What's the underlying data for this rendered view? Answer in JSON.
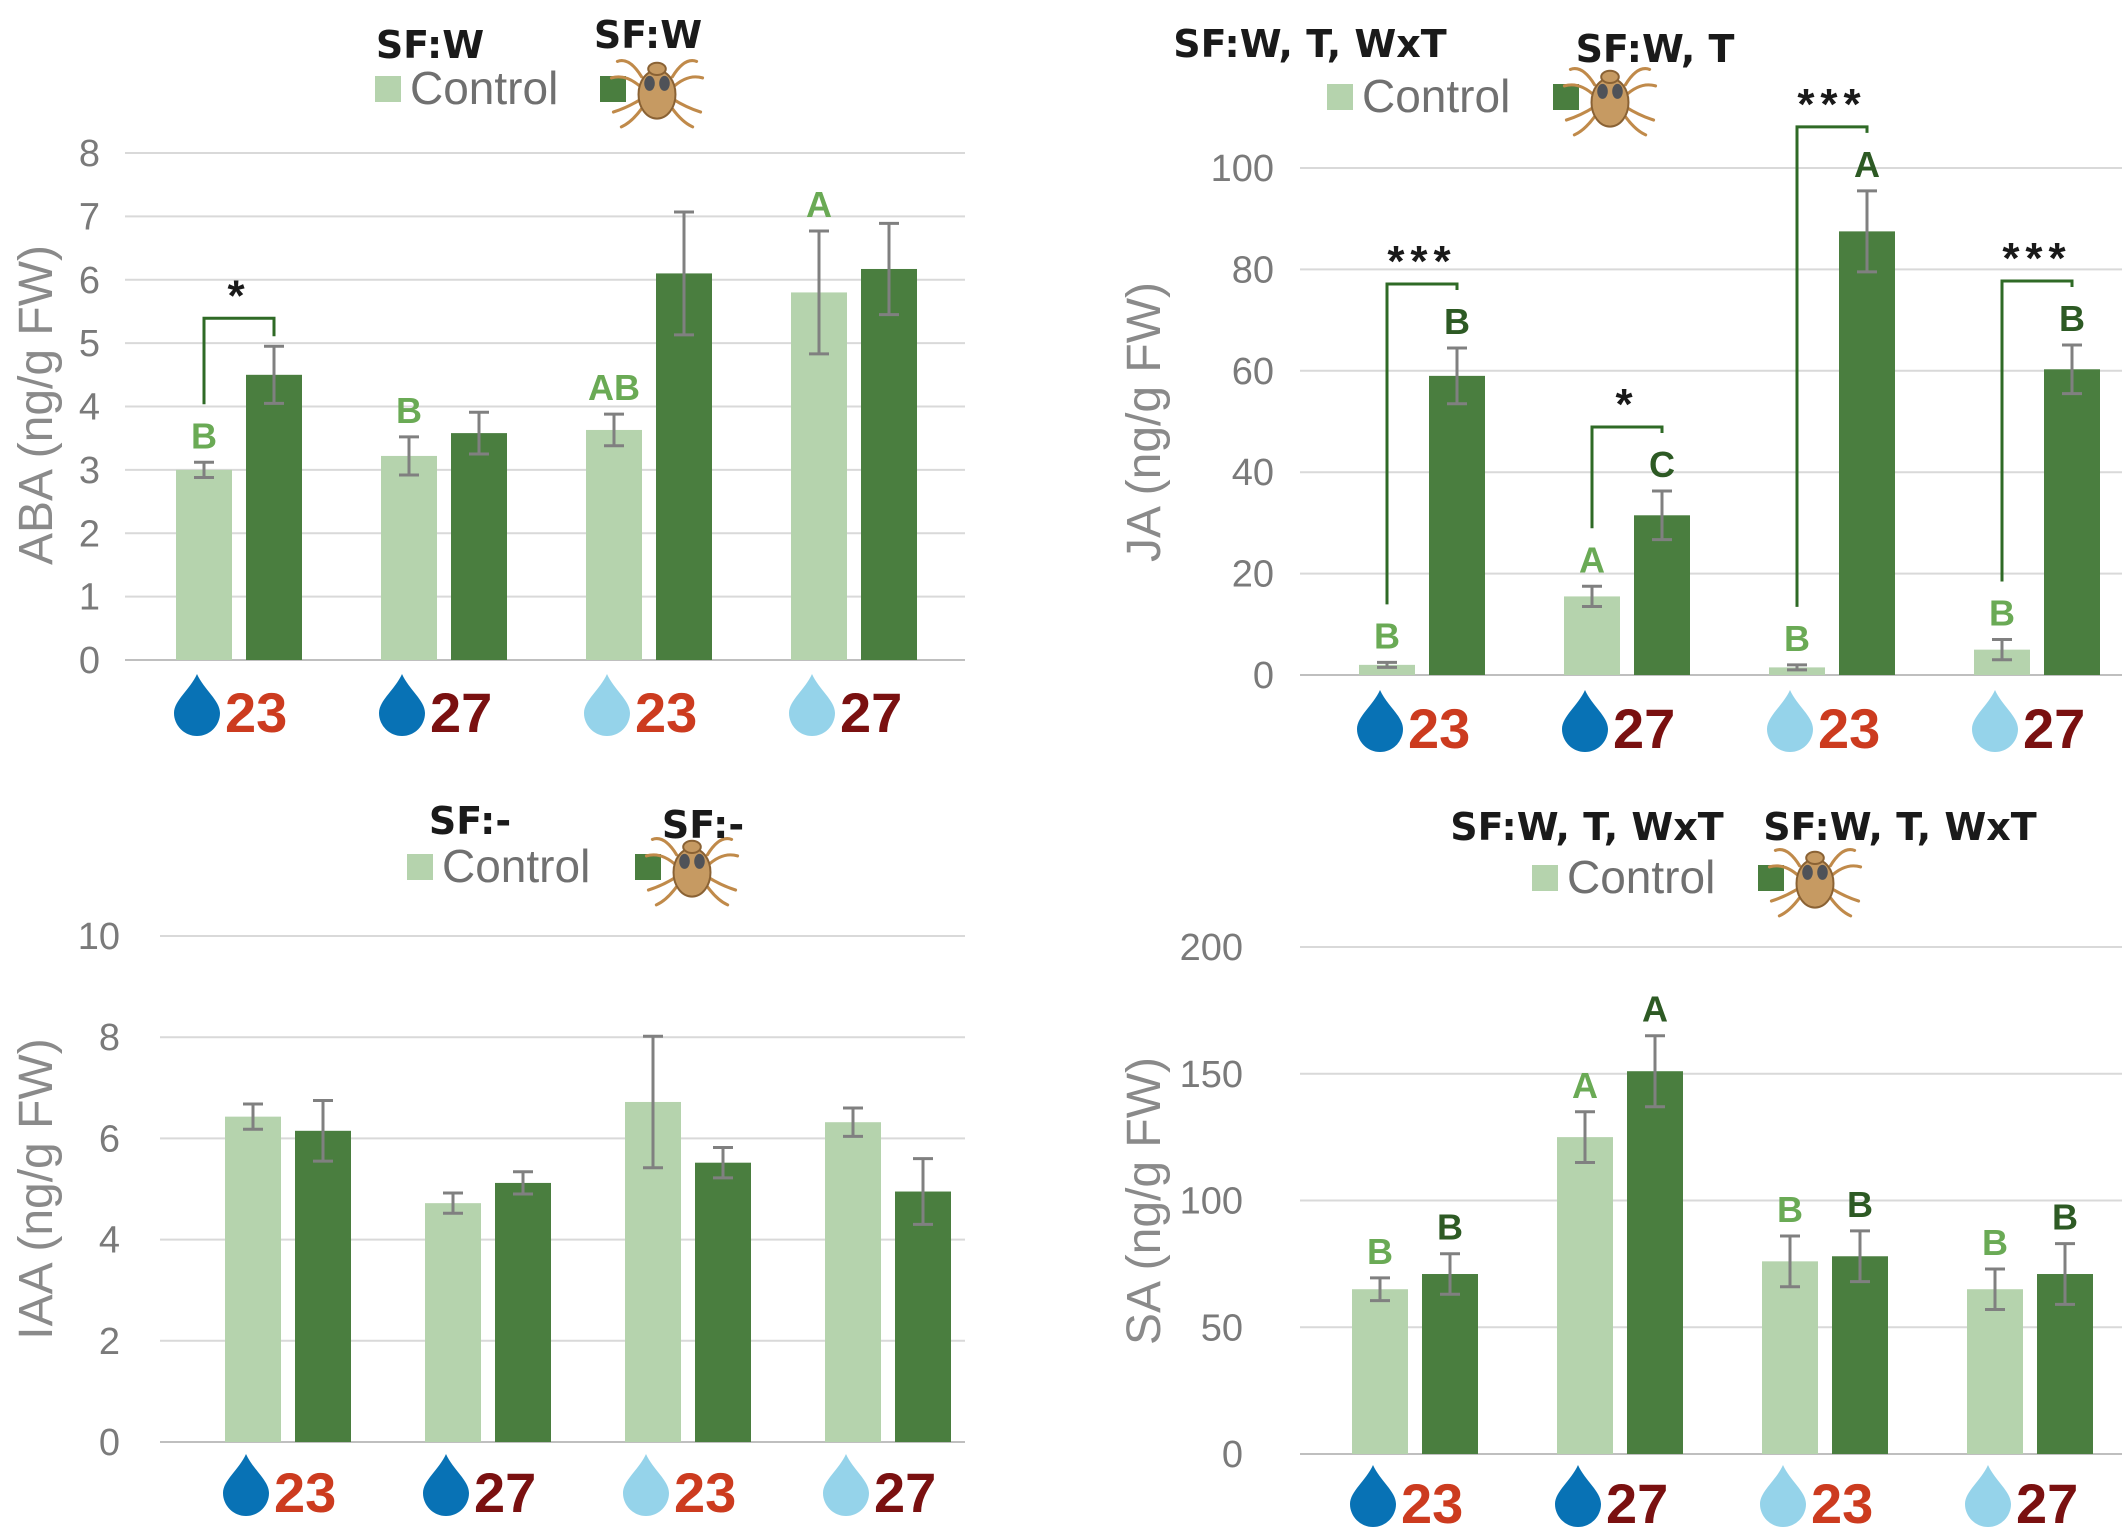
{
  "colors": {
    "control": "#b5d3ad",
    "treated": "#4a7e3f",
    "control_letter": "#6aaa55",
    "treated_letter": "#2d5a24",
    "grid": "#d9d9d9",
    "axis": "#bfbfbf",
    "errbar": "#808080",
    "bracket": "#2f6a26",
    "drop_dark": "#0872b5",
    "drop_light": "#95d3ea",
    "num_23": "#cc3b1f",
    "num_27": "#7a1010"
  },
  "legend": {
    "control_label": "Control",
    "treated_icon": "mite-icon"
  },
  "categories": [
    {
      "drop": "dark",
      "label": "23"
    },
    {
      "drop": "dark",
      "label": "27"
    },
    {
      "drop": "light",
      "label": "23"
    },
    {
      "drop": "light",
      "label": "27"
    }
  ],
  "chart_data": [
    {
      "type": "bar",
      "ylabel": "ABA (ng/g FW)",
      "ylim": [
        0,
        8
      ],
      "yticks": [
        0,
        1,
        2,
        3,
        4,
        5,
        6,
        7,
        8
      ],
      "grid": true,
      "sf_control": "SF:W",
      "sf_treated": "SF:W",
      "series": [
        {
          "key": "control",
          "values": [
            3.0,
            3.22,
            3.63,
            5.8
          ],
          "errors": [
            0.12,
            0.3,
            0.25,
            0.97
          ],
          "letters": [
            "B",
            "B",
            "AB",
            "A"
          ]
        },
        {
          "key": "treated",
          "values": [
            4.5,
            3.58,
            6.1,
            6.17
          ],
          "errors": [
            0.45,
            0.33,
            0.97,
            0.72
          ],
          "letters": [
            "",
            "",
            "",
            ""
          ]
        }
      ],
      "significance": [
        {
          "category": 0,
          "label": "*"
        }
      ]
    },
    {
      "type": "bar",
      "ylabel": "JA (ng/g FW)",
      "ylim": [
        0,
        100
      ],
      "yticks": [
        0,
        20,
        40,
        60,
        80,
        100
      ],
      "grid": true,
      "sf_control": "SF:W, T, WxT",
      "sf_treated": "SF:W, T",
      "series": [
        {
          "key": "control",
          "values": [
            2,
            15.5,
            1.5,
            5
          ],
          "errors": [
            0.5,
            2,
            0.5,
            2
          ],
          "letters": [
            "B",
            "A",
            "B",
            "B"
          ]
        },
        {
          "key": "treated",
          "values": [
            59,
            31.5,
            87.5,
            60.3
          ],
          "errors": [
            5.5,
            4.8,
            8,
            4.8
          ],
          "letters": [
            "B",
            "C",
            "A",
            "B"
          ]
        }
      ],
      "significance": [
        {
          "category": 0,
          "label": "***"
        },
        {
          "category": 1,
          "label": "*"
        },
        {
          "category": 2,
          "label": "***"
        },
        {
          "category": 3,
          "label": "***"
        }
      ]
    },
    {
      "type": "bar",
      "ylabel": "IAA (ng/g FW)",
      "ylim": [
        0,
        10
      ],
      "yticks": [
        0,
        2,
        4,
        6,
        8,
        10
      ],
      "grid": true,
      "sf_control": "SF:-",
      "sf_treated": "SF:-",
      "series": [
        {
          "key": "control",
          "values": [
            6.43,
            4.72,
            6.72,
            6.32
          ],
          "errors": [
            0.25,
            0.2,
            1.3,
            0.28
          ],
          "letters": [
            "",
            "",
            "",
            ""
          ]
        },
        {
          "key": "treated",
          "values": [
            6.15,
            5.12,
            5.52,
            4.95
          ],
          "errors": [
            0.6,
            0.22,
            0.3,
            0.65
          ],
          "letters": [
            "",
            "",
            "",
            ""
          ]
        }
      ],
      "significance": []
    },
    {
      "type": "bar",
      "ylabel": "SA (ng/g FW)",
      "ylim": [
        0,
        200
      ],
      "yticks": [
        0,
        50,
        100,
        150,
        200
      ],
      "grid": true,
      "sf_control": "SF:W, T, WxT",
      "sf_treated": "SF:W, T, WxT",
      "series": [
        {
          "key": "control",
          "values": [
            65,
            125,
            76,
            65
          ],
          "errors": [
            4.5,
            10,
            10,
            8
          ],
          "letters": [
            "B",
            "A",
            "B",
            "B"
          ]
        },
        {
          "key": "treated",
          "values": [
            71,
            151,
            78,
            71
          ],
          "errors": [
            8,
            14,
            10,
            12
          ],
          "letters": [
            "B",
            "A",
            "B",
            "B"
          ]
        }
      ],
      "significance": []
    }
  ]
}
